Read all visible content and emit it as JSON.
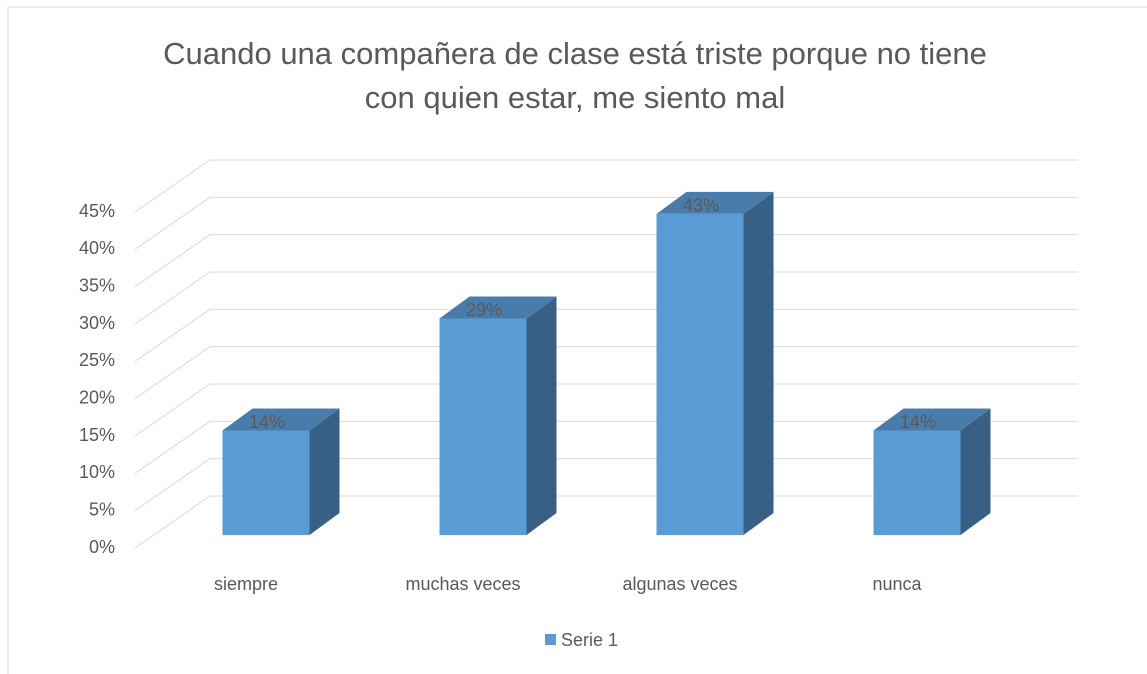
{
  "chart_data": {
    "type": "bar3d",
    "title": "Cuando una compañera de clase está triste porque no tiene con quien estar, me siento mal",
    "categories": [
      "siempre",
      "muchas veces",
      "algunas veces",
      "nunca"
    ],
    "series": [
      {
        "name": "Serie 1",
        "color": "#5b9bd5",
        "values": [
          14,
          29,
          43,
          14
        ],
        "value_labels": [
          "14%",
          "29%",
          "43%",
          "14%"
        ]
      }
    ],
    "ylim": [
      0,
      45
    ],
    "yticks": [
      {
        "value": 0,
        "label": "0%"
      },
      {
        "value": 5,
        "label": "5%"
      },
      {
        "value": 10,
        "label": "10%"
      },
      {
        "value": 15,
        "label": "15%"
      },
      {
        "value": 20,
        "label": "20%"
      },
      {
        "value": 25,
        "label": "25%"
      },
      {
        "value": 30,
        "label": "30%"
      },
      {
        "value": 35,
        "label": "35%"
      },
      {
        "value": 40,
        "label": "40%"
      },
      {
        "value": 45,
        "label": "45%"
      }
    ],
    "grid": true,
    "legend": "bottom"
  }
}
